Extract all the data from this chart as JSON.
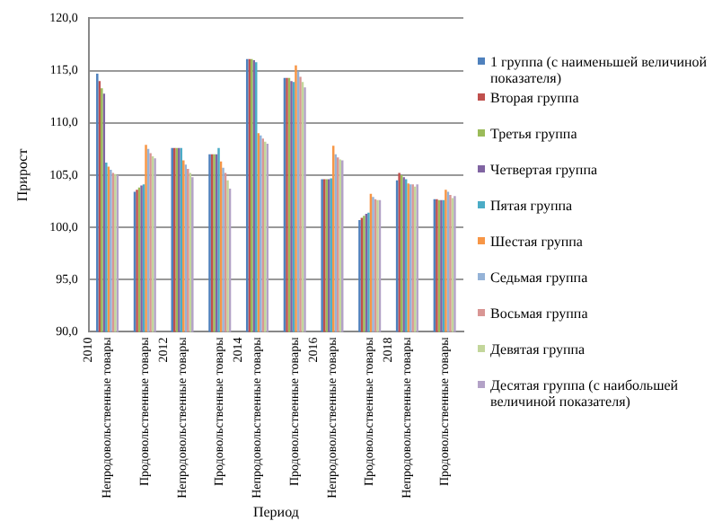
{
  "chart_data": {
    "type": "bar",
    "ylabel": "Прирост",
    "xlabel": "Период",
    "categories": [
      "Непродовольственные товары",
      "Продовольственные товары",
      "Непродовольственные товары",
      "Продовольственные товары",
      "Непродовольственные товары",
      "Продовольственные товары",
      "Непродовольственные товары",
      "Продовольственные товары",
      "Непродовольственные товары",
      "Продовольственные товары"
    ],
    "annotations": [
      "2010",
      "2012",
      "2014",
      "2016",
      "2018"
    ],
    "ylim": [
      90,
      120
    ],
    "yticks": [
      {
        "value": 90,
        "label": "90,0"
      },
      {
        "value": 95,
        "label": "95,0"
      },
      {
        "value": 100,
        "label": "100,0"
      },
      {
        "value": 105,
        "label": "105,0"
      },
      {
        "value": 110,
        "label": "110,0"
      },
      {
        "value": 115,
        "label": "115,0"
      },
      {
        "value": 120,
        "label": "120,0"
      }
    ],
    "grid": "y",
    "legend": "right",
    "series": [
      {
        "name": "1 группа (с наименьшей величиной показателя)",
        "color": "#4f81bd",
        "values": [
          114.7,
          103.4,
          107.6,
          107.0,
          116.1,
          114.3,
          104.6,
          100.7,
          104.5,
          102.7
        ]
      },
      {
        "name": "Вторая группа",
        "color": "#c0504d",
        "values": [
          114.0,
          103.6,
          107.6,
          107.0,
          116.1,
          114.3,
          104.6,
          100.9,
          105.2,
          102.7
        ]
      },
      {
        "name": "Третья группа",
        "color": "#9bbb59",
        "values": [
          113.3,
          103.8,
          107.6,
          107.0,
          116.1,
          114.3,
          104.6,
          101.1,
          105.0,
          102.6
        ]
      },
      {
        "name": "Четвертая группа",
        "color": "#8064a2",
        "values": [
          112.8,
          104.0,
          107.6,
          107.0,
          116.0,
          114.0,
          104.6,
          101.3,
          104.8,
          102.6
        ]
      },
      {
        "name": "Пятая группа",
        "color": "#4bacc6",
        "values": [
          106.2,
          104.1,
          107.6,
          107.6,
          115.8,
          113.9,
          104.7,
          101.4,
          104.6,
          102.6
        ]
      },
      {
        "name": "Шестая группа",
        "color": "#f79646",
        "values": [
          105.8,
          107.9,
          106.4,
          106.3,
          109.0,
          115.5,
          107.8,
          103.2,
          104.2,
          103.6
        ]
      },
      {
        "name": "Седьмая группа",
        "color": "#95b3d7",
        "values": [
          105.5,
          107.5,
          106.0,
          105.7,
          108.8,
          114.9,
          107.0,
          102.9,
          104.1,
          103.4
        ]
      },
      {
        "name": "Восьмая группа",
        "color": "#d99694",
        "values": [
          105.2,
          107.1,
          105.6,
          105.2,
          108.5,
          114.4,
          106.7,
          102.7,
          104.1,
          103.1
        ]
      },
      {
        "name": "Девятая группа",
        "color": "#c3d69b",
        "values": [
          105.1,
          106.8,
          105.2,
          104.5,
          108.2,
          113.9,
          106.5,
          102.6,
          103.9,
          102.8
        ]
      },
      {
        "name": "Десятая группа (с наибольшей величиной показателя)",
        "color": "#b3a2c7",
        "values": [
          105.0,
          106.6,
          104.8,
          103.7,
          108.0,
          113.4,
          106.4,
          102.6,
          104.1,
          103.0
        ]
      }
    ]
  }
}
